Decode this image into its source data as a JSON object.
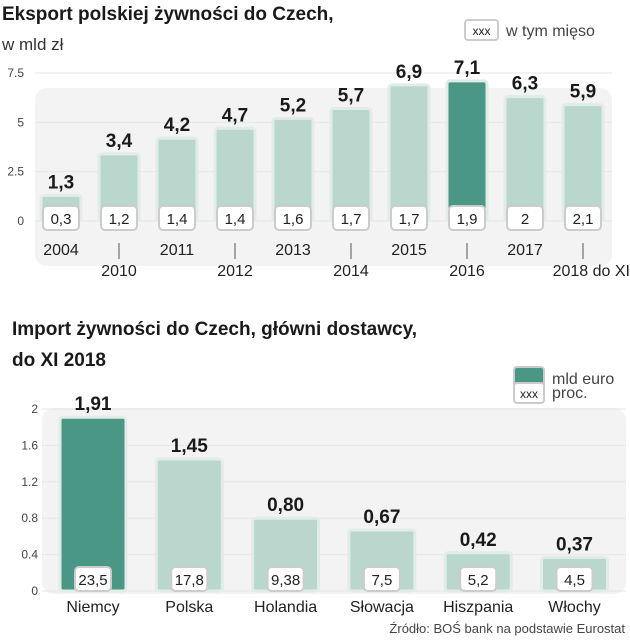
{
  "chart_data": [
    {
      "type": "bar",
      "title": "Eksport polskiej żywności do Czech,",
      "subtitle": "w mld zł",
      "categories": [
        "2004",
        "2010",
        "2011",
        "2012",
        "2013",
        "2014",
        "2015",
        "2016",
        "2017",
        "2018 do XI"
      ],
      "series": [
        {
          "name": "",
          "values": [
            1.3,
            3.4,
            4.2,
            4.7,
            5.2,
            5.7,
            6.9,
            7.1,
            6.3,
            5.9
          ],
          "labels": [
            "1,3",
            "3,4",
            "4,2",
            "4,7",
            "5,2",
            "5,7",
            "6,9",
            "7,1",
            "6,3",
            "5,9"
          ]
        },
        {
          "name": "w tym mięso",
          "values": [
            0.3,
            1.2,
            1.4,
            1.4,
            1.6,
            1.7,
            1.7,
            1.9,
            2,
            2.1
          ],
          "labels": [
            "0,3",
            "1,2",
            "1,4",
            "1,4",
            "1,6",
            "1,7",
            "1,7",
            "1,9",
            "2",
            "2,1"
          ]
        }
      ],
      "highlight_category": "2016",
      "yticks": [
        "0",
        "2.5",
        "5",
        "7.5"
      ],
      "ylim": [
        0,
        7.5
      ],
      "legend": {
        "box_text": "xxx",
        "label": "w tym mięso",
        "placement": "top-right"
      },
      "grid": true
    },
    {
      "type": "bar",
      "title": "Import żywności do Czech, główni dostawcy,",
      "subtitle": "do XI 2018",
      "categories": [
        "Niemcy",
        "Polska",
        "Holandia",
        "Słowacja",
        "Hiszpania",
        "Włochy"
      ],
      "series": [
        {
          "name": "mld euro",
          "values": [
            1.91,
            1.45,
            0.8,
            0.67,
            0.42,
            0.37
          ],
          "labels": [
            "1,91",
            "1,45",
            "0,80",
            "0,67",
            "0,42",
            "0,37"
          ]
        },
        {
          "name": "proc.",
          "values": [
            23.5,
            17.8,
            9.38,
            7.5,
            5.2,
            4.5
          ],
          "labels": [
            "23,5",
            "17,8",
            "9,38",
            "7,5",
            "5,2",
            "4,5"
          ]
        }
      ],
      "highlight_category": "Niemcy",
      "yticks": [
        "0",
        "0.4",
        "0.8",
        "1.2",
        "1.6",
        "2"
      ],
      "ylim": [
        0,
        2
      ],
      "legend": {
        "items": [
          {
            "label": "mld euro"
          },
          {
            "box_text": "xxx",
            "label": "proc."
          }
        ],
        "placement": "top-right"
      },
      "grid": true
    }
  ],
  "source": "Źródło: BOŚ bank na podstawie Eurostat",
  "colors": {
    "bar": "#b9d7cd",
    "highlight": "#4a9786",
    "panel": "#f3f3f3",
    "border": "#e2ece7"
  }
}
